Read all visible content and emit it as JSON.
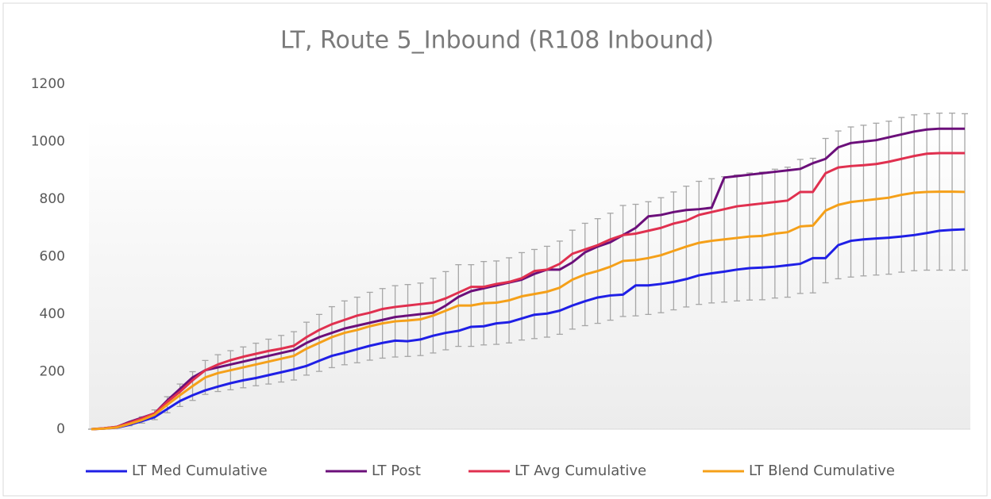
{
  "chart_data": {
    "type": "line",
    "title": "LT, Route 5_Inbound (R108 Inbound)",
    "ylim": [
      0,
      1200
    ],
    "yticks": [
      0,
      200,
      400,
      600,
      800,
      1000,
      1200
    ],
    "legend": "bottom",
    "series": [
      {
        "name": "LT Med Cumulative",
        "color": "#1f1fe6",
        "values": [
          0,
          2,
          5,
          15,
          28,
          42,
          70,
          98,
          118,
          135,
          148,
          160,
          170,
          178,
          188,
          198,
          208,
          220,
          238,
          255,
          266,
          278,
          290,
          300,
          308,
          306,
          312,
          325,
          335,
          342,
          356,
          358,
          368,
          372,
          385,
          398,
          402,
          412,
          430,
          445,
          458,
          465,
          468,
          500,
          500,
          505,
          512,
          522,
          535,
          542,
          548,
          555,
          560,
          562,
          565,
          570,
          575,
          595,
          595,
          640,
          655,
          660,
          663,
          666,
          670,
          675,
          682,
          690,
          693,
          695
        ]
      },
      {
        "name": "LT Post",
        "color": "#6b0f7a",
        "values": [
          0,
          3,
          8,
          25,
          40,
          55,
          100,
          140,
          180,
          205,
          215,
          225,
          235,
          245,
          255,
          265,
          275,
          300,
          320,
          335,
          350,
          360,
          370,
          380,
          390,
          395,
          400,
          405,
          430,
          460,
          480,
          490,
          500,
          510,
          520,
          540,
          555,
          555,
          580,
          615,
          635,
          650,
          675,
          700,
          740,
          745,
          755,
          762,
          765,
          770,
          875,
          880,
          885,
          890,
          895,
          900,
          905,
          925,
          940,
          980,
          995,
          1000,
          1005,
          1015,
          1025,
          1035,
          1042,
          1045,
          1045,
          1045
        ]
      },
      {
        "name": "LT Avg Cumulative",
        "color": "#e0304f",
        "values": [
          0,
          3,
          8,
          22,
          38,
          55,
          95,
          130,
          170,
          205,
          225,
          240,
          252,
          262,
          272,
          280,
          290,
          320,
          345,
          365,
          380,
          395,
          405,
          418,
          425,
          430,
          435,
          440,
          455,
          475,
          495,
          495,
          505,
          512,
          525,
          550,
          555,
          575,
          610,
          625,
          640,
          660,
          675,
          680,
          690,
          700,
          715,
          725,
          745,
          755,
          765,
          775,
          780,
          785,
          790,
          795,
          825,
          825,
          890,
          910,
          915,
          918,
          922,
          930,
          940,
          950,
          958,
          960,
          960,
          960
        ]
      },
      {
        "name": "LT Blend Cumulative",
        "color": "#f5a019",
        "values": [
          0,
          2,
          6,
          18,
          32,
          50,
          85,
          118,
          150,
          180,
          195,
          205,
          215,
          225,
          235,
          245,
          255,
          280,
          300,
          320,
          335,
          345,
          358,
          368,
          375,
          378,
          382,
          395,
          412,
          430,
          430,
          438,
          440,
          448,
          462,
          470,
          478,
          492,
          520,
          538,
          550,
          565,
          585,
          588,
          595,
          605,
          620,
          635,
          648,
          655,
          660,
          665,
          670,
          672,
          680,
          685,
          705,
          708,
          760,
          780,
          790,
          795,
          800,
          805,
          815,
          822,
          825,
          826,
          826,
          825
        ],
        "errors": [
          0,
          1,
          2,
          6,
          11,
          17,
          28,
          39,
          50,
          59,
          64,
          68,
          71,
          74,
          78,
          81,
          84,
          92,
          99,
          106,
          111,
          114,
          118,
          121,
          124,
          125,
          126,
          130,
          136,
          142,
          142,
          145,
          145,
          148,
          152,
          155,
          158,
          162,
          172,
          178,
          182,
          186,
          193,
          194,
          196,
          200,
          205,
          210,
          214,
          216,
          218,
          219,
          221,
          222,
          224,
          226,
          233,
          234,
          251,
          257,
          261,
          262,
          264,
          266,
          269,
          271,
          272,
          273,
          273,
          272
        ]
      }
    ]
  }
}
